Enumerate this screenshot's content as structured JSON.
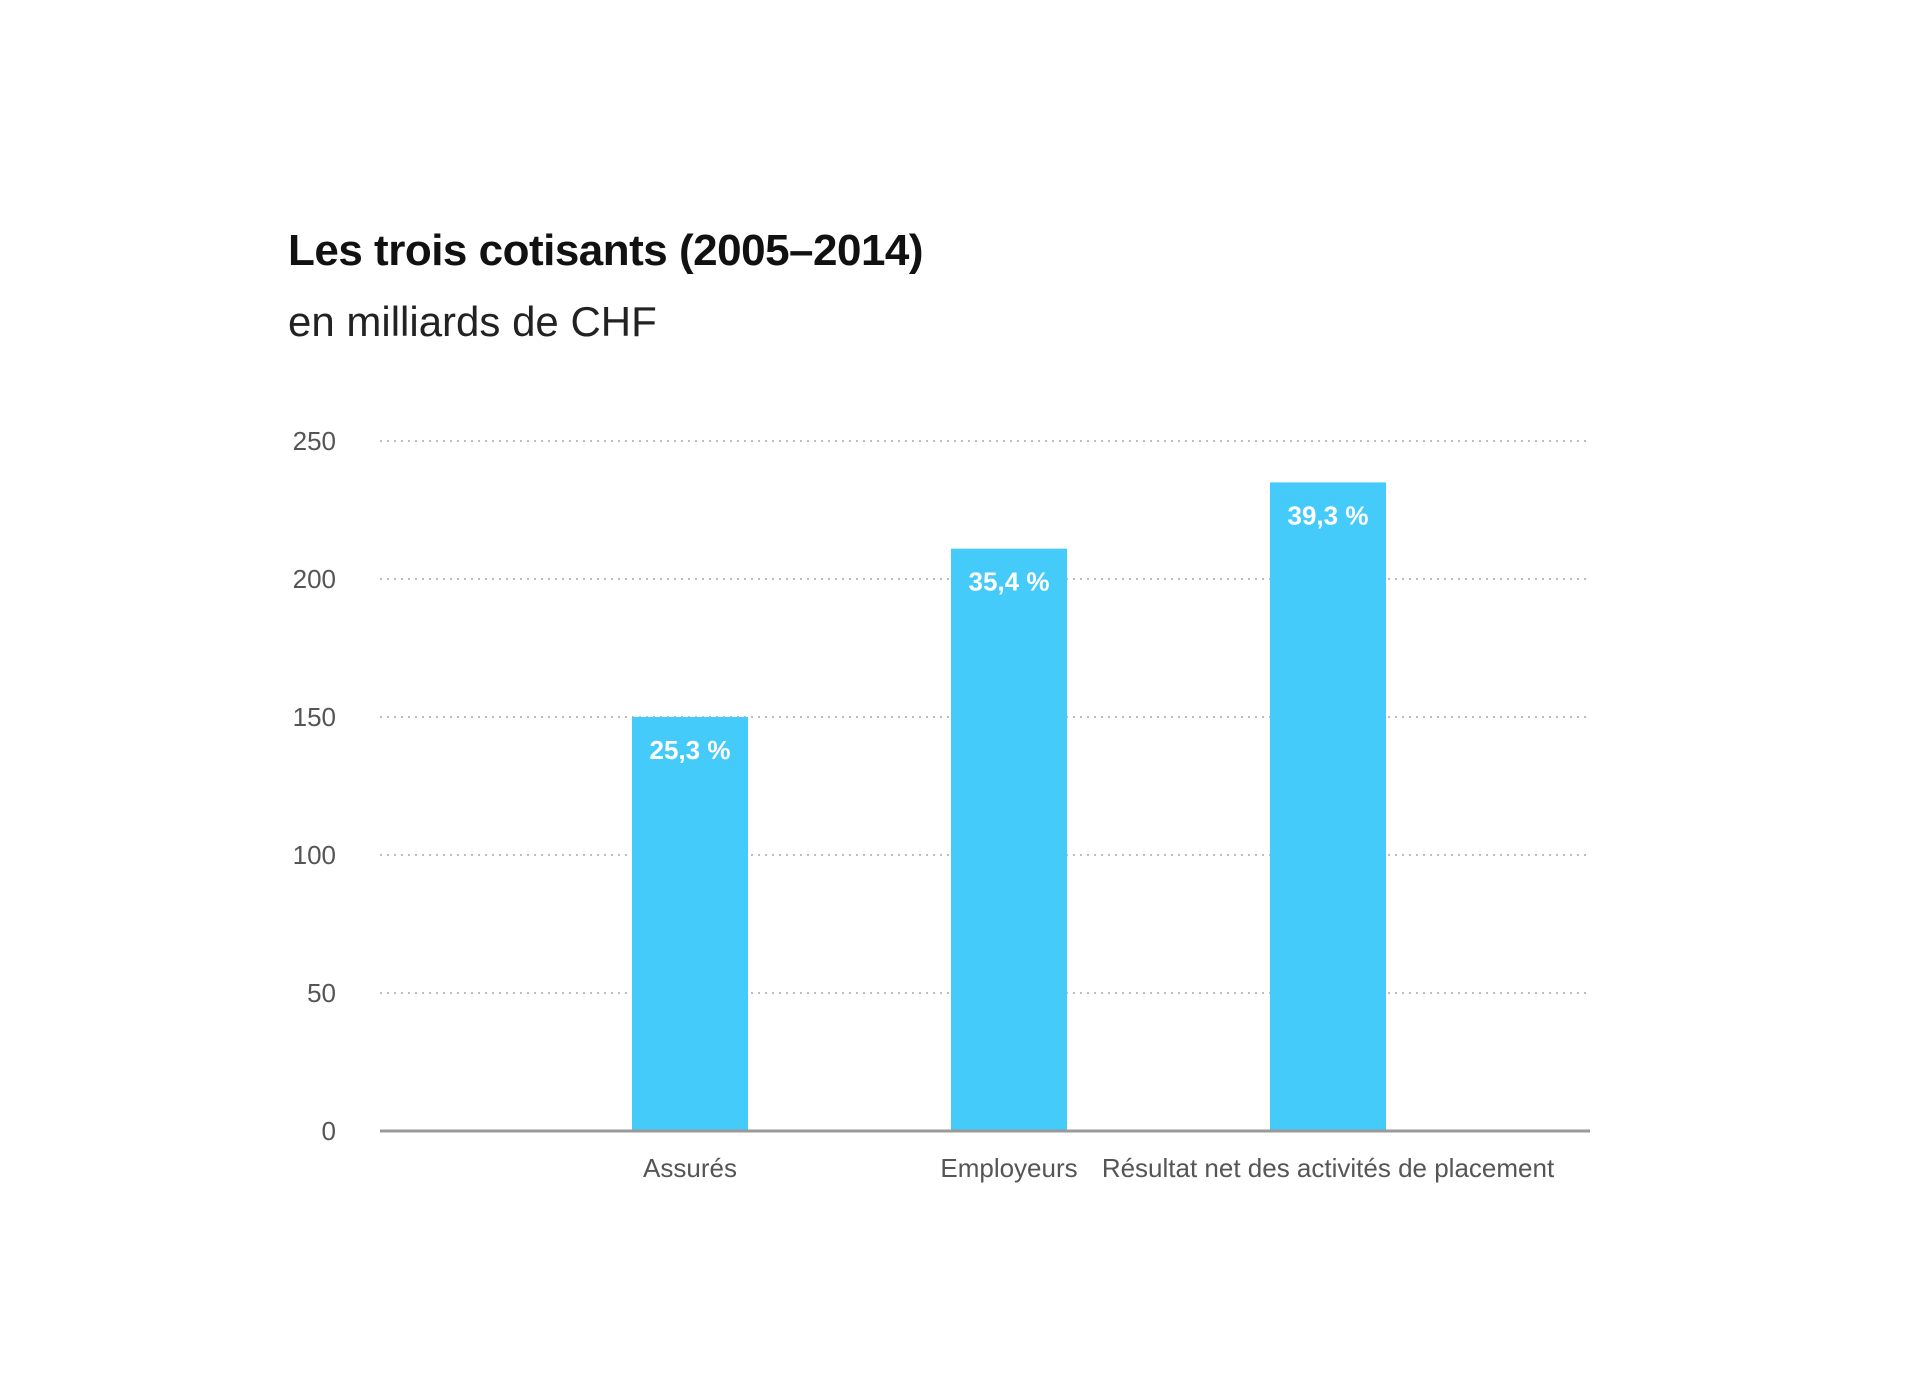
{
  "chart_data": {
    "type": "bar",
    "title": "Les trois cotisants (2005–2014)",
    "subtitle": "en milliards de CHF",
    "categories": [
      "Assurés",
      "Employeurs",
      "Résultat net des activités de placement"
    ],
    "values": [
      150,
      211,
      235
    ],
    "data_labels": [
      "25,3 %",
      "35,4 %",
      "39,3 %"
    ],
    "ylim": [
      0,
      250
    ],
    "yticks": [
      0,
      50,
      100,
      150,
      200,
      250
    ],
    "ytick_labels": [
      "0",
      "50",
      "100",
      "150",
      "200",
      "250"
    ],
    "grid": true,
    "grid_style": "dotted",
    "legend": "none",
    "colors": {
      "bar": "#45cbfa",
      "grid": "#bdbdbd",
      "axis": "#9a9a9a",
      "text": "#555555"
    }
  }
}
